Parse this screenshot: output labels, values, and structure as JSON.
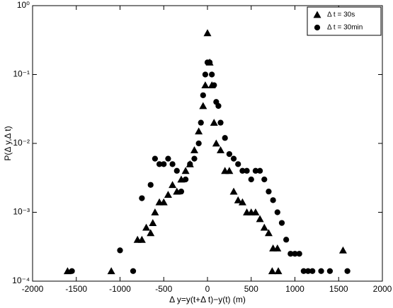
{
  "chart_data": {
    "type": "scatter",
    "xlabel": "Δ y=y(t+Δ t)−y(t)   (m)",
    "ylabel": "P(Δ y,Δ t)",
    "xlim": [
      -2000,
      2000
    ],
    "xticks": [
      -2000,
      -1500,
      -1000,
      -500,
      0,
      500,
      1000,
      1500,
      2000
    ],
    "ylim": [
      0.0001,
      1
    ],
    "yticks": [
      {
        "value": 0.0001,
        "label": "10⁻⁴"
      },
      {
        "value": 0.001,
        "label": "10⁻³"
      },
      {
        "value": 0.01,
        "label": "10⁻²"
      },
      {
        "value": 0.1,
        "label": "10⁻¹"
      },
      {
        "value": 1,
        "label": "10⁰"
      }
    ],
    "ylog": true,
    "legend": "upper right",
    "series": [
      {
        "name": "Δ t = 30s",
        "marker": "triangle",
        "color": "#000000",
        "x": [
          -1600,
          -1100,
          -800,
          -750,
          -700,
          -650,
          -625,
          -600,
          -550,
          -500,
          -450,
          -400,
          -350,
          -300,
          -250,
          -200,
          -150,
          -100,
          -50,
          -25,
          0,
          25,
          50,
          75,
          100,
          150,
          200,
          250,
          300,
          350,
          400,
          450,
          500,
          550,
          600,
          650,
          700,
          750,
          800,
          740,
          810,
          1550
        ],
        "values": [
          0.00014,
          0.00014,
          0.0004,
          0.0004,
          0.0006,
          0.0005,
          0.0007,
          0.001,
          0.0014,
          0.0014,
          0.0018,
          0.0025,
          0.002,
          0.003,
          0.004,
          0.005,
          0.008,
          0.015,
          0.035,
          0.07,
          0.4,
          0.15,
          0.07,
          0.02,
          0.01,
          0.008,
          0.004,
          0.004,
          0.002,
          0.0015,
          0.0014,
          0.001,
          0.001,
          0.001,
          0.0008,
          0.0006,
          0.0005,
          0.0003,
          0.0003,
          0.00014,
          0.00014,
          0.00028
        ]
      },
      {
        "name": "Δ t = 30min",
        "marker": "circle",
        "color": "#000000",
        "x": [
          -1550,
          -1000,
          -850,
          -750,
          -650,
          -600,
          -550,
          -500,
          -450,
          -400,
          -350,
          -300,
          -250,
          -200,
          -150,
          -100,
          -75,
          -50,
          -25,
          0,
          25,
          50,
          75,
          100,
          125,
          150,
          200,
          250,
          300,
          350,
          400,
          450,
          500,
          550,
          600,
          650,
          700,
          750,
          800,
          850,
          900,
          950,
          1000,
          1050,
          1100,
          1150,
          1200,
          1300,
          1400,
          1600
        ],
        "values": [
          0.00014,
          0.00028,
          0.00014,
          0.0016,
          0.0025,
          0.006,
          0.005,
          0.005,
          0.006,
          0.005,
          0.004,
          0.002,
          0.003,
          0.005,
          0.006,
          0.01,
          0.02,
          0.05,
          0.1,
          0.15,
          0.15,
          0.1,
          0.07,
          0.04,
          0.035,
          0.02,
          0.012,
          0.007,
          0.006,
          0.005,
          0.004,
          0.004,
          0.003,
          0.004,
          0.004,
          0.003,
          0.002,
          0.0015,
          0.001,
          0.0007,
          0.0004,
          0.00025,
          0.00025,
          0.00025,
          0.00014,
          0.00014,
          0.00014,
          0.00014,
          0.00014,
          0.00014
        ]
      }
    ]
  }
}
